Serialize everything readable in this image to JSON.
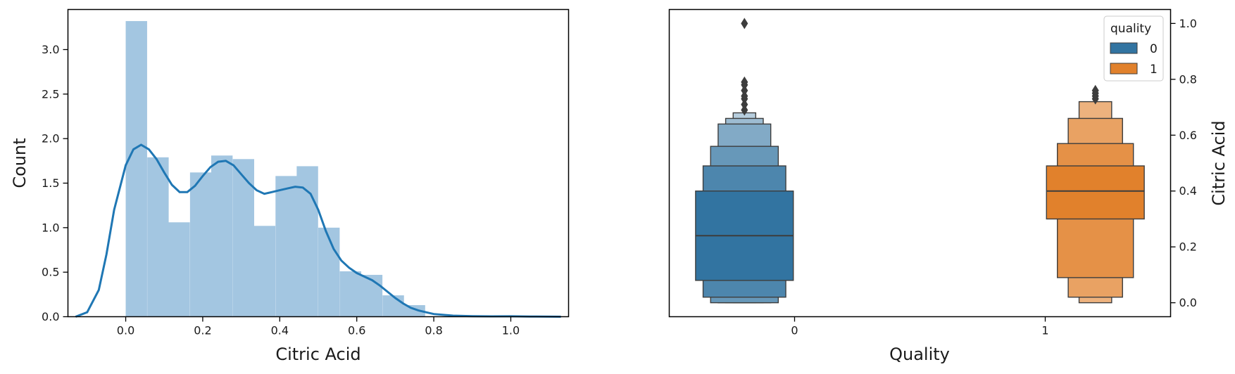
{
  "chart_data": [
    {
      "type": "bar",
      "subtype": "histogram with kde",
      "xlabel": "Citric Acid",
      "ylabel": "Count",
      "xlim": [
        -0.15,
        1.15
      ],
      "ylim": [
        0,
        3.45
      ],
      "xticks": [
        "0.0",
        "0.2",
        "0.4",
        "0.6",
        "0.8",
        "1.0"
      ],
      "yticks": [
        "0.0",
        "0.5",
        "1.0",
        "1.5",
        "2.0",
        "2.5",
        "3.0"
      ],
      "bin_width": 0.0556,
      "bins": [
        {
          "x0": 0.0,
          "count": 3.32
        },
        {
          "x0": 0.056,
          "count": 1.79
        },
        {
          "x0": 0.111,
          "count": 1.06
        },
        {
          "x0": 0.167,
          "count": 1.62
        },
        {
          "x0": 0.222,
          "count": 1.81
        },
        {
          "x0": 0.278,
          "count": 1.77
        },
        {
          "x0": 0.333,
          "count": 1.02
        },
        {
          "x0": 0.389,
          "count": 1.58
        },
        {
          "x0": 0.444,
          "count": 1.69
        },
        {
          "x0": 0.5,
          "count": 1.0
        },
        {
          "x0": 0.556,
          "count": 0.51
        },
        {
          "x0": 0.611,
          "count": 0.47
        },
        {
          "x0": 0.667,
          "count": 0.24
        },
        {
          "x0": 0.722,
          "count": 0.13
        }
      ],
      "kde": {
        "x": [
          -0.13,
          -0.1,
          -0.07,
          -0.05,
          -0.03,
          0.0,
          0.02,
          0.04,
          0.06,
          0.08,
          0.1,
          0.12,
          0.14,
          0.16,
          0.18,
          0.2,
          0.22,
          0.24,
          0.26,
          0.28,
          0.3,
          0.32,
          0.34,
          0.36,
          0.38,
          0.4,
          0.42,
          0.44,
          0.46,
          0.48,
          0.5,
          0.52,
          0.54,
          0.56,
          0.58,
          0.6,
          0.62,
          0.64,
          0.66,
          0.68,
          0.7,
          0.72,
          0.74,
          0.76,
          0.78,
          0.8,
          0.85,
          0.9,
          0.95,
          1.0,
          1.05,
          1.13
        ],
        "y": [
          0.0,
          0.05,
          0.3,
          0.7,
          1.2,
          1.7,
          1.88,
          1.93,
          1.88,
          1.77,
          1.62,
          1.48,
          1.4,
          1.4,
          1.47,
          1.58,
          1.68,
          1.74,
          1.75,
          1.7,
          1.6,
          1.5,
          1.42,
          1.38,
          1.4,
          1.42,
          1.44,
          1.46,
          1.45,
          1.38,
          1.2,
          0.96,
          0.76,
          0.63,
          0.55,
          0.49,
          0.45,
          0.41,
          0.35,
          0.28,
          0.21,
          0.15,
          0.1,
          0.07,
          0.05,
          0.03,
          0.012,
          0.006,
          0.004,
          0.005,
          0.002,
          0.0
        ]
      },
      "colors": {
        "bars": "#a3c6e1",
        "kde": "#1f77b4"
      },
      "grid": false
    },
    {
      "type": "boxen",
      "xlabel": "Quality",
      "ylabel": "Citric Acid",
      "categories": [
        "0",
        "1"
      ],
      "ylim": [
        -0.05,
        1.05
      ],
      "yticks": [
        "0.0",
        "0.2",
        "0.4",
        "0.6",
        "0.8",
        "1.0"
      ],
      "legend": {
        "title": "quality",
        "entries": [
          "0",
          "1"
        ],
        "position": "upper right"
      },
      "series": [
        {
          "name": "0",
          "category": "0",
          "color": "#3274a1",
          "median": 0.24,
          "boxes": [
            {
              "low": 0.08,
              "high": 0.4
            },
            {
              "low": 0.02,
              "high": 0.49
            },
            {
              "low": 0.0,
              "high": 0.56
            },
            {
              "low": 0.0,
              "high": 0.64
            },
            {
              "low": 0.0,
              "high": 0.66
            },
            {
              "low": 0.0,
              "high": 0.68
            }
          ],
          "outliers": [
            0.69,
            0.71,
            0.73,
            0.74,
            0.76,
            0.78,
            0.79,
            1.0
          ]
        },
        {
          "name": "1",
          "category": "1",
          "color": "#e1812c",
          "median": 0.4,
          "boxes": [
            {
              "low": 0.3,
              "high": 0.49
            },
            {
              "low": 0.09,
              "high": 0.57
            },
            {
              "low": 0.02,
              "high": 0.66
            },
            {
              "low": 0.0,
              "high": 0.72
            }
          ],
          "outliers": [
            0.73,
            0.74,
            0.75,
            0.76
          ]
        }
      ],
      "grid": false
    }
  ]
}
